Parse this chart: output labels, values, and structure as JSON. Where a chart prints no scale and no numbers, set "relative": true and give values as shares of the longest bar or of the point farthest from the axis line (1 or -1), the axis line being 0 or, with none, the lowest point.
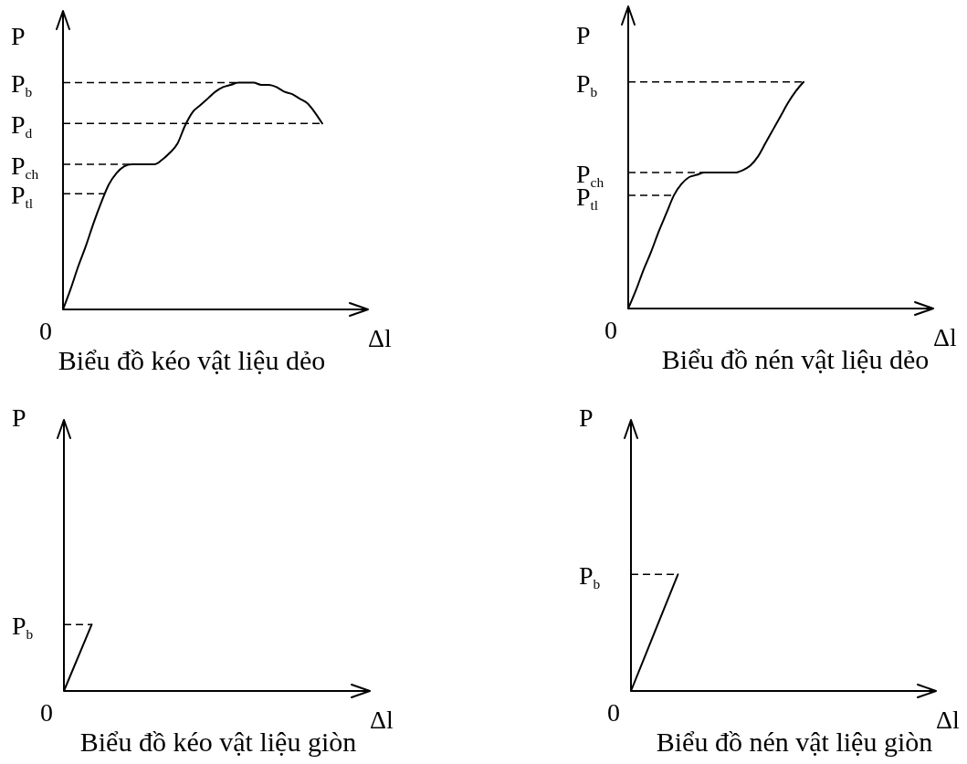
{
  "chart_data": [
    {
      "type": "line",
      "title": "Biểu đồ kéo vật liệu dẻo",
      "xlabel": "Δl",
      "ylabel": "P",
      "relative": true,
      "categories": [
        null,
        null,
        null,
        null,
        null,
        null,
        null,
        null,
        null,
        null,
        null,
        null,
        null,
        null,
        null,
        null,
        null,
        null,
        null,
        null,
        null,
        null,
        null,
        null,
        null,
        null,
        null,
        null,
        null,
        null,
        null,
        null,
        null,
        null,
        null,
        null,
        null,
        null,
        null,
        null,
        null
      ],
      "series": [
        {
          "color": "#000000",
          "values": [
            0,
            0.09,
            0.19,
            0.28,
            0.38,
            0.47,
            0.55,
            0.6,
            0.63,
            0.64,
            0.64,
            0.64,
            0.64,
            0.66,
            0.69,
            0.73,
            0.81,
            0.87,
            0.9,
            0.93,
            0.96,
            0.98,
            0.99,
            1,
            1,
            1,
            0.99,
            0.99,
            0.98,
            0.96,
            0.95,
            0.93,
            0.91,
            0.87,
            0.82,
            null,
            null,
            null,
            null,
            null,
            null
          ]
        }
      ],
      "ref_lines": [
        {
          "axis": "y",
          "value": 1,
          "label": "P$_{b}$",
          "line_style": "dashed"
        },
        {
          "axis": "y",
          "value": 0.82,
          "label": "P$_{d}$",
          "line_style": "dashed"
        },
        {
          "axis": "y",
          "value": 0.64,
          "label": "P$_{ch}$",
          "line_style": "dashed"
        },
        {
          "axis": "y",
          "value": 0.51,
          "label": "P$_{tl}$",
          "line_style": "dashed"
        }
      ],
      "annotations": [
        "0"
      ]
    },
    {
      "type": "line",
      "title": "Biểu đồ nén vật liệu dẻo",
      "xlabel": "Δl",
      "ylabel": "P",
      "relative": true,
      "categories": [
        null,
        null,
        null,
        null,
        null,
        null,
        null,
        null,
        null,
        null,
        null,
        null,
        null,
        null,
        null,
        null,
        null,
        null,
        null,
        null,
        null,
        null,
        null,
        null,
        null,
        null,
        null,
        null,
        null,
        null,
        null,
        null,
        null,
        null,
        null,
        null,
        null,
        null,
        null,
        null,
        null
      ],
      "series": [
        {
          "color": "#000000",
          "values": [
            0,
            0.08,
            0.17,
            0.25,
            0.34,
            0.42,
            0.5,
            0.55,
            0.58,
            0.59,
            0.6,
            0.6,
            0.6,
            0.6,
            0.6,
            0.61,
            0.63,
            0.67,
            0.73,
            0.79,
            0.85,
            0.91,
            0.96,
            1,
            null,
            null,
            null,
            null,
            null,
            null,
            null,
            null,
            null,
            null,
            null,
            null,
            null,
            null,
            null,
            null,
            null
          ]
        }
      ],
      "ref_lines": [
        {
          "axis": "y",
          "value": 1,
          "label": "P$_{b}$",
          "line_style": "dashed"
        },
        {
          "axis": "y",
          "value": 0.6,
          "label": "P$_{ch}$",
          "line_style": "dashed"
        },
        {
          "axis": "y",
          "value": 0.5,
          "label": "P$_{tl}$",
          "line_style": "dashed"
        }
      ],
      "annotations": [
        "0"
      ]
    },
    {
      "type": "line",
      "title": "Biểu đồ kéo vật liệu giòn",
      "xlabel": "Δl",
      "ylabel": "P",
      "relative": true,
      "categories": [
        null,
        null,
        null,
        null,
        null,
        null,
        null,
        null,
        null,
        null,
        null,
        null
      ],
      "series": [
        {
          "color": "#000000",
          "values": [
            0,
            1,
            null,
            null,
            null,
            null,
            null,
            null,
            null,
            null,
            null,
            null
          ]
        }
      ],
      "ref_lines": [
        {
          "axis": "y",
          "value": 1,
          "label": "P$_{b}$",
          "line_style": "dashed"
        }
      ],
      "annotations": [
        "0"
      ]
    },
    {
      "type": "line",
      "title": "Biểu đồ nén vật liệu giòn",
      "xlabel": "Δl",
      "ylabel": "P",
      "relative": true,
      "categories": [
        null,
        null,
        null,
        null,
        null,
        null,
        null,
        null,
        null,
        null,
        null,
        null,
        null,
        null
      ],
      "series": [
        {
          "color": "#000000",
          "values": [
            0,
            0.5,
            1,
            null,
            null,
            null,
            null,
            null,
            null,
            null,
            null,
            null,
            null,
            null
          ]
        }
      ],
      "ref_lines": [
        {
          "axis": "y",
          "value": 1,
          "label": "P$_{b}$",
          "line_style": "dashed"
        }
      ],
      "annotations": [
        "0"
      ]
    }
  ]
}
